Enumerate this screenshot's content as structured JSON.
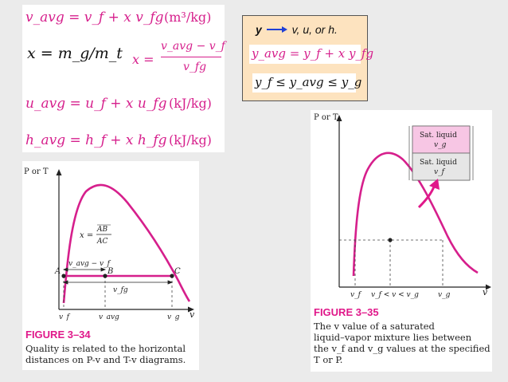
{
  "equations": {
    "v_avg": "v_avg = v_f + x v_fg",
    "v_avg_unit": "(m³/kg)",
    "quality_mass": "x = m_g/m_t",
    "quality_vol_lhs": "x =",
    "quality_vol_num": "v_avg − v_f",
    "quality_vol_den": "v_fg",
    "u_avg": "u_avg = u_f + x u_fg",
    "u_avg_unit": "(kJ/kg)",
    "h_avg": "h_avg = h_f + x h_fg",
    "h_avg_unit": "(kJ/kg)"
  },
  "general_box": {
    "header_y": "y",
    "header_rest": "v, u, or h.",
    "y_avg": "y_avg = y_f + x y_fg",
    "inequality": "y_f ≤ y_avg ≤ y_g",
    "bg_color": "#fde3bf"
  },
  "fig34": {
    "axis_y": "P or T",
    "axis_x": "v",
    "label_A": "A",
    "label_B": "B",
    "label_C": "C",
    "quality_x": "x =",
    "quality_num": "AB",
    "quality_den": "AC",
    "seg_avg": "v_avg − v_f",
    "seg_fg": "v_fg",
    "tick_vf": "v_f",
    "tick_vavg": "v_avg",
    "tick_vg": "v_g",
    "caption_title": "FIGURE 3–34",
    "caption_line1": "Quality is related to the horizontal",
    "caption_line2": "distances on P-v and T-v diagrams."
  },
  "fig35": {
    "axis_y": "P or T",
    "axis_x": "v",
    "legend_top_line1": "Sat. liquid",
    "legend_top_line2": "v_g",
    "legend_bottom_line1": "Sat. liquid",
    "legend_bottom_line2": "v_f",
    "tick_vf": "v_f",
    "tick_mid": "v_f < v < v_g",
    "tick_vg": "v_g",
    "caption_title": "FIGURE 3–35",
    "caption_line1": "The v value of a saturated",
    "caption_line2": "liquid–vapor mixture lies between",
    "caption_line3": "the v_f and v_g values at the specified",
    "caption_line4": "T or P."
  },
  "colors": {
    "magenta": "#d61f8c",
    "accent_blue": "#1f3fd6",
    "legend_pink": "#f7c6e4",
    "legend_gray": "#e6e6e6"
  }
}
